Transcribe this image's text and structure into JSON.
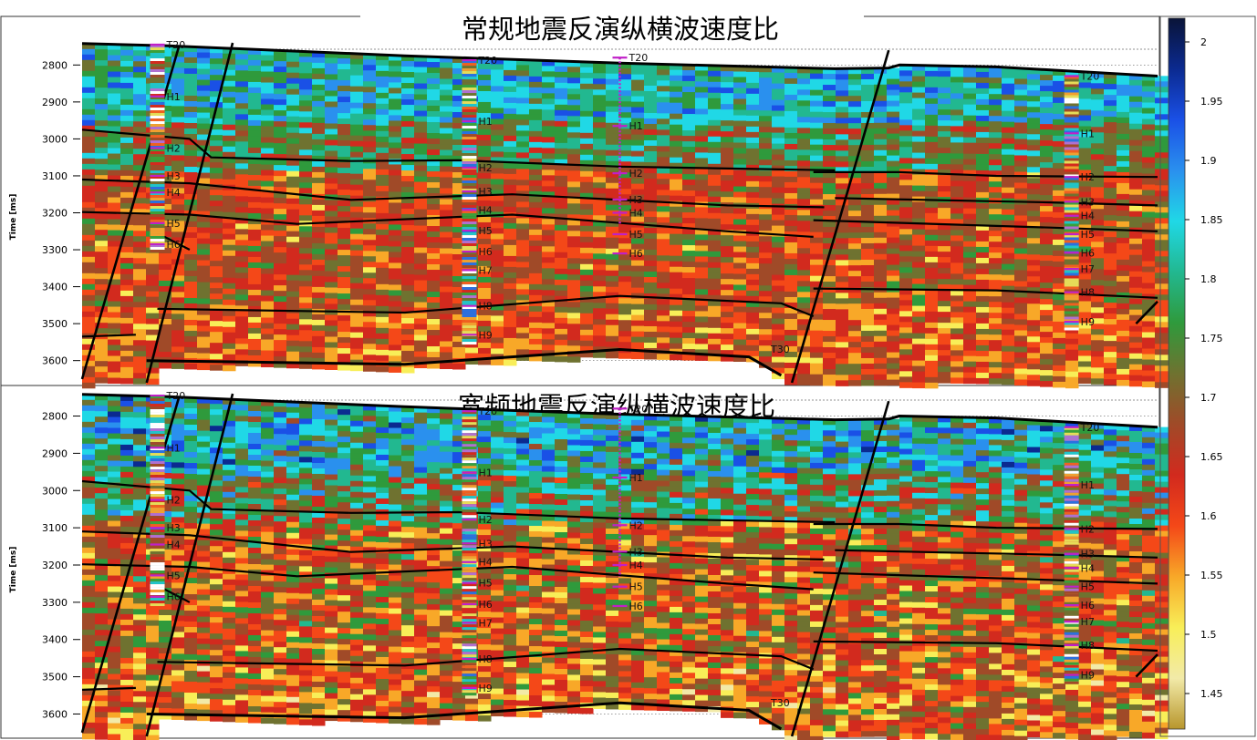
{
  "chart_data": [
    {
      "type": "heatmap",
      "title": "常规地震反演纵横波速度比",
      "ylabel": "Time [ms]",
      "ylim": [
        2740,
        3660
      ],
      "y_ticks": [
        2800,
        2900,
        3000,
        3100,
        3200,
        3300,
        3400,
        3500,
        3600
      ],
      "grid": true,
      "wells": [
        {
          "name": "well-a",
          "x_frac": 0.07,
          "markers": [
            {
              "label": "T20",
              "t": 2745
            },
            {
              "label": "H1",
              "t": 2885
            },
            {
              "label": "H2",
              "t": 3025
            },
            {
              "label": "H3",
              "t": 3100
            },
            {
              "label": "H4",
              "t": 3145
            },
            {
              "label": "H5",
              "t": 3228
            },
            {
              "label": "H6",
              "t": 3285
            }
          ]
        },
        {
          "name": "well-b",
          "x_frac": 0.36,
          "markers": [
            {
              "label": "T20",
              "t": 2787
            },
            {
              "label": "H1",
              "t": 2952
            },
            {
              "label": "H2",
              "t": 3078
            },
            {
              "label": "H3",
              "t": 3142
            },
            {
              "label": "H4",
              "t": 3192
            },
            {
              "label": "H5",
              "t": 3248
            },
            {
              "label": "H6",
              "t": 3305
            },
            {
              "label": "H7",
              "t": 3355
            },
            {
              "label": "H8",
              "t": 3452
            },
            {
              "label": "H9",
              "t": 3530
            }
          ]
        },
        {
          "name": "well-c",
          "x_frac": 0.5,
          "markers": [
            {
              "label": "T20",
              "t": 2780
            },
            {
              "label": "H1",
              "t": 2965
            },
            {
              "label": "H2",
              "t": 3093
            },
            {
              "label": "H3",
              "t": 3164
            },
            {
              "label": "H4",
              "t": 3200
            },
            {
              "label": "H5",
              "t": 3258
            },
            {
              "label": "H6",
              "t": 3310
            }
          ]
        },
        {
          "name": "well-d",
          "x_frac": 0.92,
          "markers": [
            {
              "label": "T20",
              "t": 2830
            },
            {
              "label": "H1",
              "t": 2985
            },
            {
              "label": "H2",
              "t": 3103
            },
            {
              "label": "H3",
              "t": 3170
            },
            {
              "label": "H4",
              "t": 3208
            },
            {
              "label": "H5",
              "t": 3258
            },
            {
              "label": "H6",
              "t": 3308
            },
            {
              "label": "H7",
              "t": 3352
            },
            {
              "label": "H8",
              "t": 3415
            },
            {
              "label": "H9",
              "t": 3495
            }
          ]
        }
      ],
      "annotations": [
        "T30"
      ]
    },
    {
      "type": "heatmap",
      "title": "宽频地震反演纵横波速度比",
      "ylabel": "Time [ms]",
      "ylim": [
        2740,
        3660
      ],
      "y_ticks": [
        2800,
        2900,
        3000,
        3100,
        3200,
        3300,
        3400,
        3500,
        3600
      ],
      "grid": true,
      "wells": [
        {
          "name": "well-a",
          "x_frac": 0.07,
          "markers": [
            {
              "label": "T20",
              "t": 2745
            },
            {
              "label": "H1",
              "t": 2885
            },
            {
              "label": "H2",
              "t": 3025
            },
            {
              "label": "H3",
              "t": 3100
            },
            {
              "label": "H4",
              "t": 3145
            },
            {
              "label": "H5",
              "t": 3228
            },
            {
              "label": "H6",
              "t": 3285
            }
          ]
        },
        {
          "name": "well-b",
          "x_frac": 0.36,
          "markers": [
            {
              "label": "T20",
              "t": 2787
            },
            {
              "label": "H1",
              "t": 2952
            },
            {
              "label": "H2",
              "t": 3078
            },
            {
              "label": "H3",
              "t": 3142
            },
            {
              "label": "H4",
              "t": 3192
            },
            {
              "label": "H5",
              "t": 3248
            },
            {
              "label": "H6",
              "t": 3305
            },
            {
              "label": "H7",
              "t": 3355
            },
            {
              "label": "H8",
              "t": 3452
            },
            {
              "label": "H9",
              "t": 3530
            }
          ]
        },
        {
          "name": "well-c",
          "x_frac": 0.5,
          "markers": [
            {
              "label": "T20",
              "t": 2780
            },
            {
              "label": "H1",
              "t": 2965
            },
            {
              "label": "H2",
              "t": 3093
            },
            {
              "label": "H3",
              "t": 3164
            },
            {
              "label": "H4",
              "t": 3200
            },
            {
              "label": "H5",
              "t": 3258
            },
            {
              "label": "H6",
              "t": 3310
            }
          ]
        },
        {
          "name": "well-d",
          "x_frac": 0.92,
          "markers": [
            {
              "label": "T20",
              "t": 2830
            },
            {
              "label": "H1",
              "t": 2985
            },
            {
              "label": "H2",
              "t": 3103
            },
            {
              "label": "H3",
              "t": 3170
            },
            {
              "label": "H4",
              "t": 3208
            },
            {
              "label": "H5",
              "t": 3258
            },
            {
              "label": "H6",
              "t": 3308
            },
            {
              "label": "H7",
              "t": 3352
            },
            {
              "label": "H8",
              "t": 3415
            },
            {
              "label": "H9",
              "t": 3495
            }
          ]
        }
      ],
      "annotations": [
        "T30"
      ]
    }
  ],
  "colorbar": {
    "min": 1.42,
    "max": 2.02,
    "ticks": [
      2,
      1.95,
      1.9,
      1.85,
      1.8,
      1.75,
      1.7,
      1.65,
      1.6,
      1.55,
      1.5,
      1.45
    ],
    "colors_high_to_low": [
      "#0a1438",
      "#0b2a90",
      "#1a50e6",
      "#2a90ee",
      "#20d8e6",
      "#22b890",
      "#2f9a3c",
      "#6f7230",
      "#a04a28",
      "#d22a1e",
      "#f44818",
      "#f8a828",
      "#f8ee58",
      "#f2eaa8",
      "#b8962c"
    ]
  }
}
